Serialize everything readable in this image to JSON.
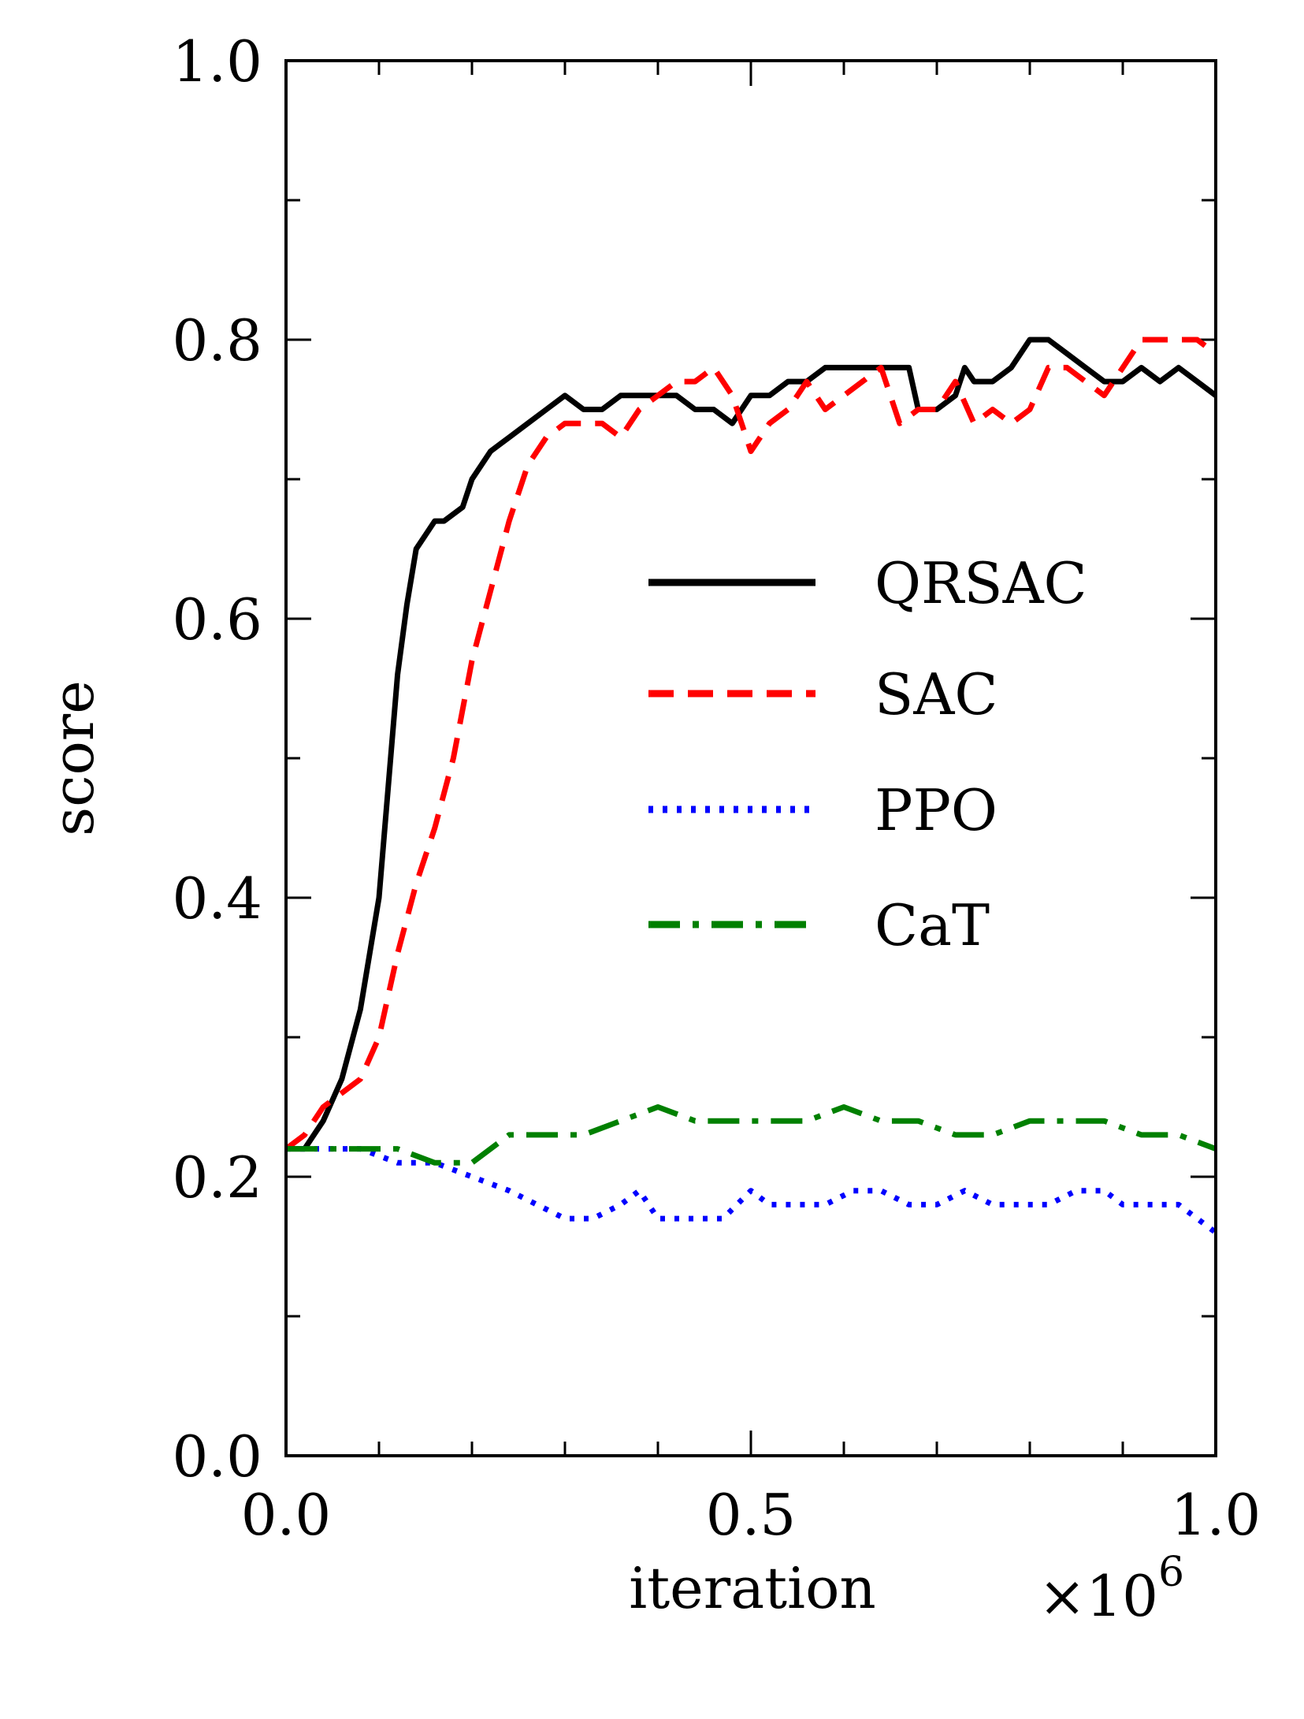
{
  "chart_data": {
    "type": "line",
    "xlabel": "iteration",
    "x_multiplier": "×10",
    "x_multiplier_exp": "6",
    "ylabel": "score",
    "xlim": [
      0.0,
      1.0
    ],
    "ylim": [
      0.0,
      1.0
    ],
    "x_ticks": [
      "0.0",
      "0.5",
      "1.0"
    ],
    "x_tick_values": [
      0.0,
      0.5,
      1.0
    ],
    "y_ticks": [
      "0.0",
      "0.2",
      "0.4",
      "0.6",
      "0.8",
      "1.0"
    ],
    "y_tick_values": [
      0.0,
      0.2,
      0.4,
      0.6,
      0.8,
      1.0
    ],
    "legend_position": "center-right",
    "series": [
      {
        "name": "QRSAC",
        "color": "#000000",
        "style": "solid",
        "x": [
          0.0,
          0.02,
          0.04,
          0.06,
          0.08,
          0.1,
          0.11,
          0.12,
          0.13,
          0.14,
          0.15,
          0.16,
          0.17,
          0.19,
          0.2,
          0.22,
          0.24,
          0.26,
          0.28,
          0.3,
          0.32,
          0.34,
          0.36,
          0.38,
          0.4,
          0.42,
          0.44,
          0.46,
          0.48,
          0.5,
          0.52,
          0.54,
          0.56,
          0.58,
          0.6,
          0.62,
          0.64,
          0.66,
          0.67,
          0.68,
          0.7,
          0.72,
          0.73,
          0.74,
          0.76,
          0.78,
          0.8,
          0.82,
          0.84,
          0.86,
          0.88,
          0.9,
          0.92,
          0.94,
          0.96,
          0.98,
          1.0
        ],
        "y": [
          0.22,
          0.22,
          0.24,
          0.27,
          0.32,
          0.4,
          0.48,
          0.56,
          0.61,
          0.65,
          0.66,
          0.67,
          0.67,
          0.68,
          0.7,
          0.72,
          0.73,
          0.74,
          0.75,
          0.76,
          0.75,
          0.75,
          0.76,
          0.76,
          0.76,
          0.76,
          0.75,
          0.75,
          0.74,
          0.76,
          0.76,
          0.77,
          0.77,
          0.78,
          0.78,
          0.78,
          0.78,
          0.78,
          0.78,
          0.75,
          0.75,
          0.76,
          0.78,
          0.77,
          0.77,
          0.78,
          0.8,
          0.8,
          0.79,
          0.78,
          0.77,
          0.77,
          0.78,
          0.77,
          0.78,
          0.77,
          0.76
        ]
      },
      {
        "name": "SAC",
        "color": "#ff0000",
        "style": "dashed",
        "x": [
          0.0,
          0.02,
          0.04,
          0.06,
          0.08,
          0.1,
          0.12,
          0.14,
          0.16,
          0.18,
          0.2,
          0.22,
          0.24,
          0.26,
          0.28,
          0.3,
          0.32,
          0.34,
          0.36,
          0.38,
          0.4,
          0.42,
          0.44,
          0.46,
          0.48,
          0.5,
          0.52,
          0.54,
          0.56,
          0.58,
          0.6,
          0.62,
          0.64,
          0.66,
          0.68,
          0.7,
          0.72,
          0.74,
          0.76,
          0.78,
          0.8,
          0.82,
          0.84,
          0.86,
          0.88,
          0.9,
          0.92,
          0.94,
          0.96,
          0.98,
          1.0
        ],
        "y": [
          0.22,
          0.23,
          0.25,
          0.26,
          0.27,
          0.3,
          0.36,
          0.41,
          0.45,
          0.5,
          0.57,
          0.62,
          0.67,
          0.71,
          0.73,
          0.74,
          0.74,
          0.74,
          0.73,
          0.75,
          0.76,
          0.77,
          0.77,
          0.78,
          0.76,
          0.72,
          0.74,
          0.75,
          0.77,
          0.75,
          0.76,
          0.77,
          0.78,
          0.74,
          0.75,
          0.75,
          0.77,
          0.74,
          0.75,
          0.74,
          0.75,
          0.78,
          0.78,
          0.77,
          0.76,
          0.78,
          0.8,
          0.8,
          0.8,
          0.8,
          0.79
        ]
      },
      {
        "name": "PPO",
        "color": "#0000ff",
        "style": "dotted",
        "x": [
          0.0,
          0.04,
          0.08,
          0.12,
          0.16,
          0.2,
          0.24,
          0.27,
          0.3,
          0.33,
          0.36,
          0.38,
          0.4,
          0.42,
          0.44,
          0.47,
          0.5,
          0.52,
          0.55,
          0.58,
          0.61,
          0.64,
          0.67,
          0.7,
          0.73,
          0.76,
          0.79,
          0.82,
          0.85,
          0.88,
          0.9,
          0.93,
          0.96,
          0.98,
          1.0
        ],
        "y": [
          0.22,
          0.22,
          0.22,
          0.21,
          0.21,
          0.2,
          0.19,
          0.18,
          0.17,
          0.17,
          0.18,
          0.19,
          0.17,
          0.17,
          0.17,
          0.17,
          0.19,
          0.18,
          0.18,
          0.18,
          0.19,
          0.19,
          0.18,
          0.18,
          0.19,
          0.18,
          0.18,
          0.18,
          0.19,
          0.19,
          0.18,
          0.18,
          0.18,
          0.17,
          0.16
        ]
      },
      {
        "name": "CaT",
        "color": "#008000",
        "style": "dashdot",
        "x": [
          0.0,
          0.04,
          0.08,
          0.12,
          0.16,
          0.2,
          0.24,
          0.28,
          0.32,
          0.36,
          0.4,
          0.44,
          0.48,
          0.52,
          0.56,
          0.6,
          0.64,
          0.68,
          0.72,
          0.76,
          0.8,
          0.84,
          0.88,
          0.92,
          0.96,
          1.0
        ],
        "y": [
          0.22,
          0.22,
          0.22,
          0.22,
          0.21,
          0.21,
          0.23,
          0.23,
          0.23,
          0.24,
          0.25,
          0.24,
          0.24,
          0.24,
          0.24,
          0.25,
          0.24,
          0.24,
          0.23,
          0.23,
          0.24,
          0.24,
          0.24,
          0.23,
          0.23,
          0.22
        ]
      }
    ]
  }
}
